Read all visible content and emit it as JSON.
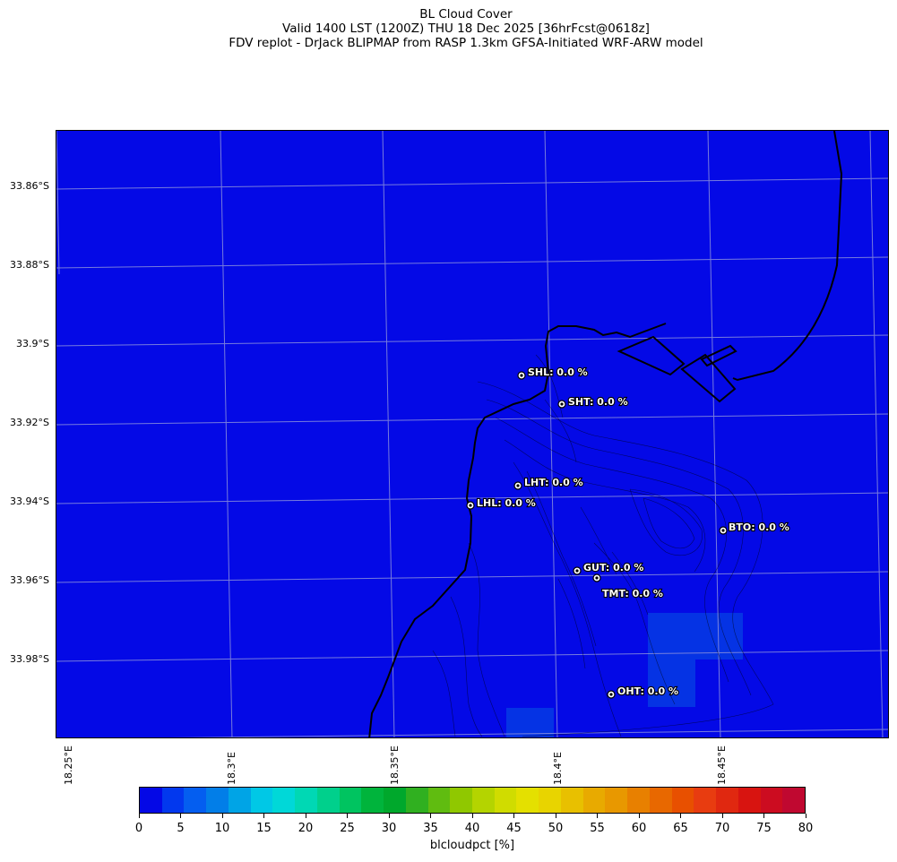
{
  "title": {
    "line1": "BL Cloud Cover",
    "line2": "Valid 1400 LST (1200Z) THU 18 Dec 2025 [36hrFcst@0618z]",
    "line3": "FDV replot - DrJack BLIPMAP from RASP 1.3km GFSA-Initiated WRF-ARW model"
  },
  "latitude_labels": [
    "33.86°S",
    "33.88°S",
    "33.9°S",
    "33.92°S",
    "33.94°S",
    "33.96°S",
    "33.98°S"
  ],
  "longitude_labels": [
    "18.25°E",
    "18.3°E",
    "18.35°E",
    "18.4°E",
    "18.45°E"
  ],
  "stations": [
    {
      "label": "SHL: 0.0 %"
    },
    {
      "label": "SHT: 0.0 %"
    },
    {
      "label": "LHT: 0.0 %"
    },
    {
      "label": "LHL: 0.0 %"
    },
    {
      "label": "BTO: 0.0 %"
    },
    {
      "label": "GUT: 0.0 %"
    },
    {
      "label": "TMT: 0.0 %"
    },
    {
      "label": "OHT: 0.0 %"
    }
  ],
  "colorbar": {
    "label": "blcloudpct [%]",
    "ticks": [
      "0",
      "5",
      "10",
      "15",
      "20",
      "25",
      "30",
      "35",
      "40",
      "45",
      "50",
      "55",
      "60",
      "65",
      "70",
      "75",
      "80"
    ],
    "colors": [
      "#0408e6",
      "#0238ee",
      "#045ef0",
      "#027ee8",
      "#00a4e6",
      "#00c8e6",
      "#00d8d8",
      "#00d8b4",
      "#00d08c",
      "#00c460",
      "#00b43c",
      "#00a82c",
      "#30b020",
      "#60bc10",
      "#90c800",
      "#b4d400",
      "#d0dc00",
      "#e4e000",
      "#e8d400",
      "#e8c000",
      "#e8aa00",
      "#e89800",
      "#e88000",
      "#e86800",
      "#e85000",
      "#e83c10",
      "#e02810",
      "#d81410",
      "#cc0c20",
      "#c00830"
    ]
  },
  "map": {
    "sea_color": "#0409e6",
    "patch_color": "#0533e4"
  }
}
